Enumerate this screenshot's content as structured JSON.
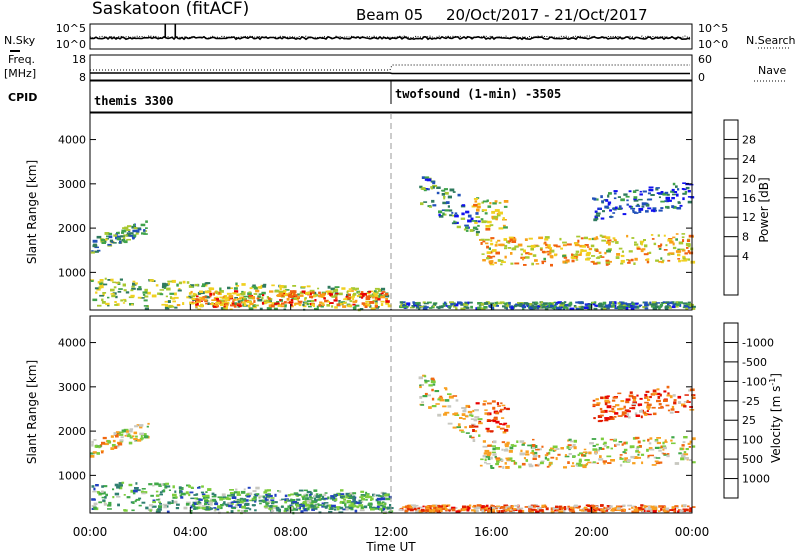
{
  "header": {
    "station": "Saskatoon (fitACF)",
    "beam": "Beam 05",
    "date_range": "20/Oct/2017 - 21/Oct/2017"
  },
  "side_labels": {
    "nsky": "N.Sky",
    "freq": "Freq.",
    "freq_unit": "[MHz]",
    "cpid": "CPID",
    "nsearch": "N.Search",
    "nave": "Nave"
  },
  "small_ticks": {
    "nsky_left": [
      "10^5",
      "10^0"
    ],
    "nsearch_right": [
      "10^5",
      "10^0"
    ],
    "freq_left": [
      "18",
      "8"
    ],
    "nave_right": [
      "60",
      "0"
    ]
  },
  "cpid": [
    {
      "name": "themis 3300",
      "start_hour": 0
    },
    {
      "name": "twofsound (1-min) -3505",
      "start_hour": 12
    }
  ],
  "chart_data": [
    {
      "type": "heatmap",
      "title": "Power",
      "ylabel": "Slant Range [km]",
      "xlabel": "",
      "xlim": [
        0,
        24
      ],
      "ylim": [
        150,
        4600
      ],
      "yticks": [
        1000,
        2000,
        3000,
        4000
      ],
      "colorbar": {
        "label": "Power [dB]",
        "ticks": [
          "4",
          "8",
          "12",
          "16",
          "20",
          "24",
          "28"
        ],
        "colors": [
          "#1010ee",
          "#2050b8",
          "#2f7a5e",
          "#3fa24a",
          "#a8c830",
          "#f0d020",
          "#f8a018",
          "#f06010",
          "#e80000"
        ]
      },
      "regions": [
        {
          "t0": 0.0,
          "t1": 2.3,
          "r0": 1450,
          "r1": 1800,
          "slope": 450,
          "level": 0.35
        },
        {
          "t0": 0.0,
          "t1": 12.0,
          "r0": 250,
          "r1": 900,
          "slope": -250,
          "level": 0.45
        },
        {
          "t0": 4.0,
          "t1": 11.8,
          "r0": 250,
          "r1": 600,
          "slope": 0,
          "level": 0.75
        },
        {
          "t0": 13.1,
          "t1": 15.5,
          "r0": 2600,
          "r1": 3400,
          "slope": -900,
          "level": 0.3
        },
        {
          "t0": 15.2,
          "t1": 16.6,
          "r0": 2000,
          "r1": 2700,
          "slope": 0,
          "level": 0.6
        },
        {
          "t0": 15.5,
          "t1": 24.0,
          "r0": 1150,
          "r1": 1800,
          "slope": 100,
          "level": 0.65
        },
        {
          "t0": 20.0,
          "t1": 24.0,
          "r0": 2200,
          "r1": 2800,
          "slope": 300,
          "level": 0.2
        },
        {
          "t0": 12.3,
          "t1": 24.0,
          "r0": 200,
          "r1": 350,
          "slope": 0,
          "level": 0.3
        }
      ]
    },
    {
      "type": "heatmap",
      "title": "Velocity",
      "ylabel": "Slant Range [km]",
      "xlabel": "Time UT",
      "xlim": [
        0,
        24
      ],
      "ylim": [
        150,
        4600
      ],
      "yticks": [
        1000,
        2000,
        3000,
        4000
      ],
      "xtick_labels": [
        "00:00",
        "04:00",
        "08:00",
        "12:00",
        "16:00",
        "20:00",
        "00:00"
      ],
      "colorbar": {
        "label": "Velocity [m s^-1]",
        "ticks": [
          "1000",
          "500",
          "100",
          "25",
          "-25",
          "-100",
          "-500",
          "-1000"
        ],
        "colors": [
          "#2040c0",
          "#308070",
          "#40a848",
          "#7ccc3c",
          "#c8c8c0",
          "#f8a020",
          "#f06810",
          "#e02000",
          "#e80000"
        ]
      },
      "regions": [
        {
          "t0": 0.0,
          "t1": 2.3,
          "r0": 1450,
          "r1": 1800,
          "slope": 450,
          "level": 0.5
        },
        {
          "t0": 0.0,
          "t1": 12.0,
          "r0": 250,
          "r1": 900,
          "slope": -250,
          "level": 0.3
        },
        {
          "t0": 4.0,
          "t1": 11.8,
          "r0": 250,
          "r1": 600,
          "slope": 0,
          "level": 0.25
        },
        {
          "t0": 13.1,
          "t1": 15.5,
          "r0": 2600,
          "r1": 3400,
          "slope": -900,
          "level": 0.5
        },
        {
          "t0": 15.2,
          "t1": 16.6,
          "r0": 2000,
          "r1": 2700,
          "slope": 0,
          "level": 0.8
        },
        {
          "t0": 15.5,
          "t1": 24.0,
          "r0": 1150,
          "r1": 1800,
          "slope": 100,
          "level": 0.5
        },
        {
          "t0": 20.0,
          "t1": 24.0,
          "r0": 2200,
          "r1": 2800,
          "slope": 300,
          "level": 0.75
        },
        {
          "t0": 12.3,
          "t1": 24.0,
          "r0": 200,
          "r1": 350,
          "slope": 0,
          "level": 0.7
        }
      ]
    }
  ]
}
